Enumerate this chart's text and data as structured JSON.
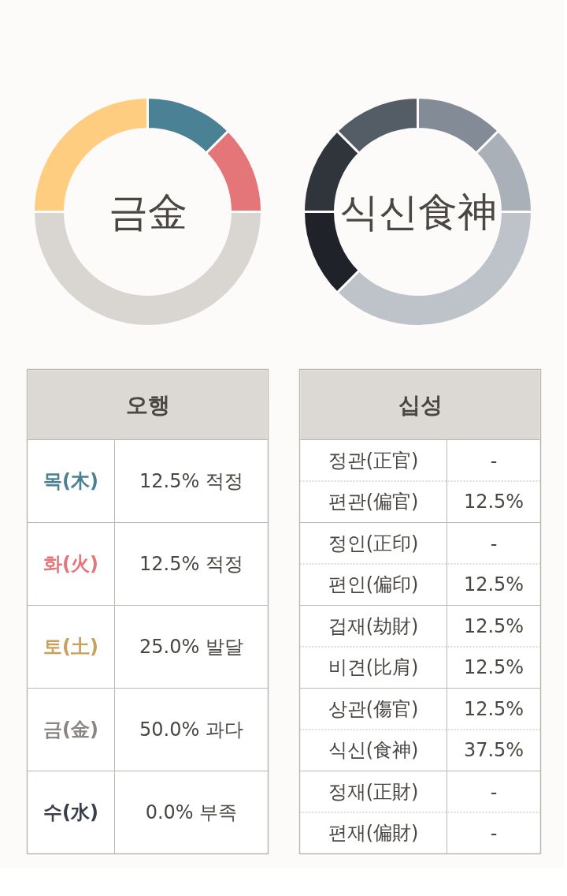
{
  "chart_data": [
    {
      "type": "donut",
      "annotations": [
        "금金"
      ],
      "categories": [
        null,
        null,
        null,
        null
      ],
      "values": [
        12.5,
        12.5,
        50.0,
        25.0
      ],
      "colors": [
        "#4a8194",
        "#e4767a",
        "#d9d6d1",
        "#ffcd7f"
      ]
    },
    {
      "type": "donut",
      "annotations": [
        "식신食神"
      ],
      "categories": [
        null,
        null,
        null,
        null,
        null,
        null
      ],
      "values": [
        12.5,
        12.5,
        37.5,
        12.5,
        12.5,
        12.5
      ],
      "colors": [
        "#838c96",
        "#a9b0b8",
        "#bec3ca",
        "#1f2329",
        "#30353b",
        "#545c66"
      ]
    },
    {
      "type": "other",
      "title": "오행",
      "annotations": [
        "목(木)",
        "12.5% 적정",
        "화(火)",
        "12.5% 적정",
        "토(土)",
        "25.0% 발달",
        "금(金)",
        "50.0% 과다",
        "수(水)",
        "0.0% 부족"
      ],
      "colors": [
        "#4a8194",
        "#e4767a",
        "#c9a05a",
        "#8a8580",
        "#3a3d4a"
      ]
    },
    {
      "type": "other",
      "title": "십성",
      "annotations": [
        "정관(正官)",
        "-",
        "편관(偏官)",
        "12.5%",
        "정인(正印)",
        "-",
        "편인(偏印)",
        "12.5%",
        "겁재(劫財)",
        "12.5%",
        "비견(比肩)",
        "12.5%",
        "상관(傷官)",
        "12.5%",
        "식신(食神)",
        "37.5%",
        "정재(正財)",
        "-",
        "편재(偏財)",
        "-"
      ]
    }
  ]
}
